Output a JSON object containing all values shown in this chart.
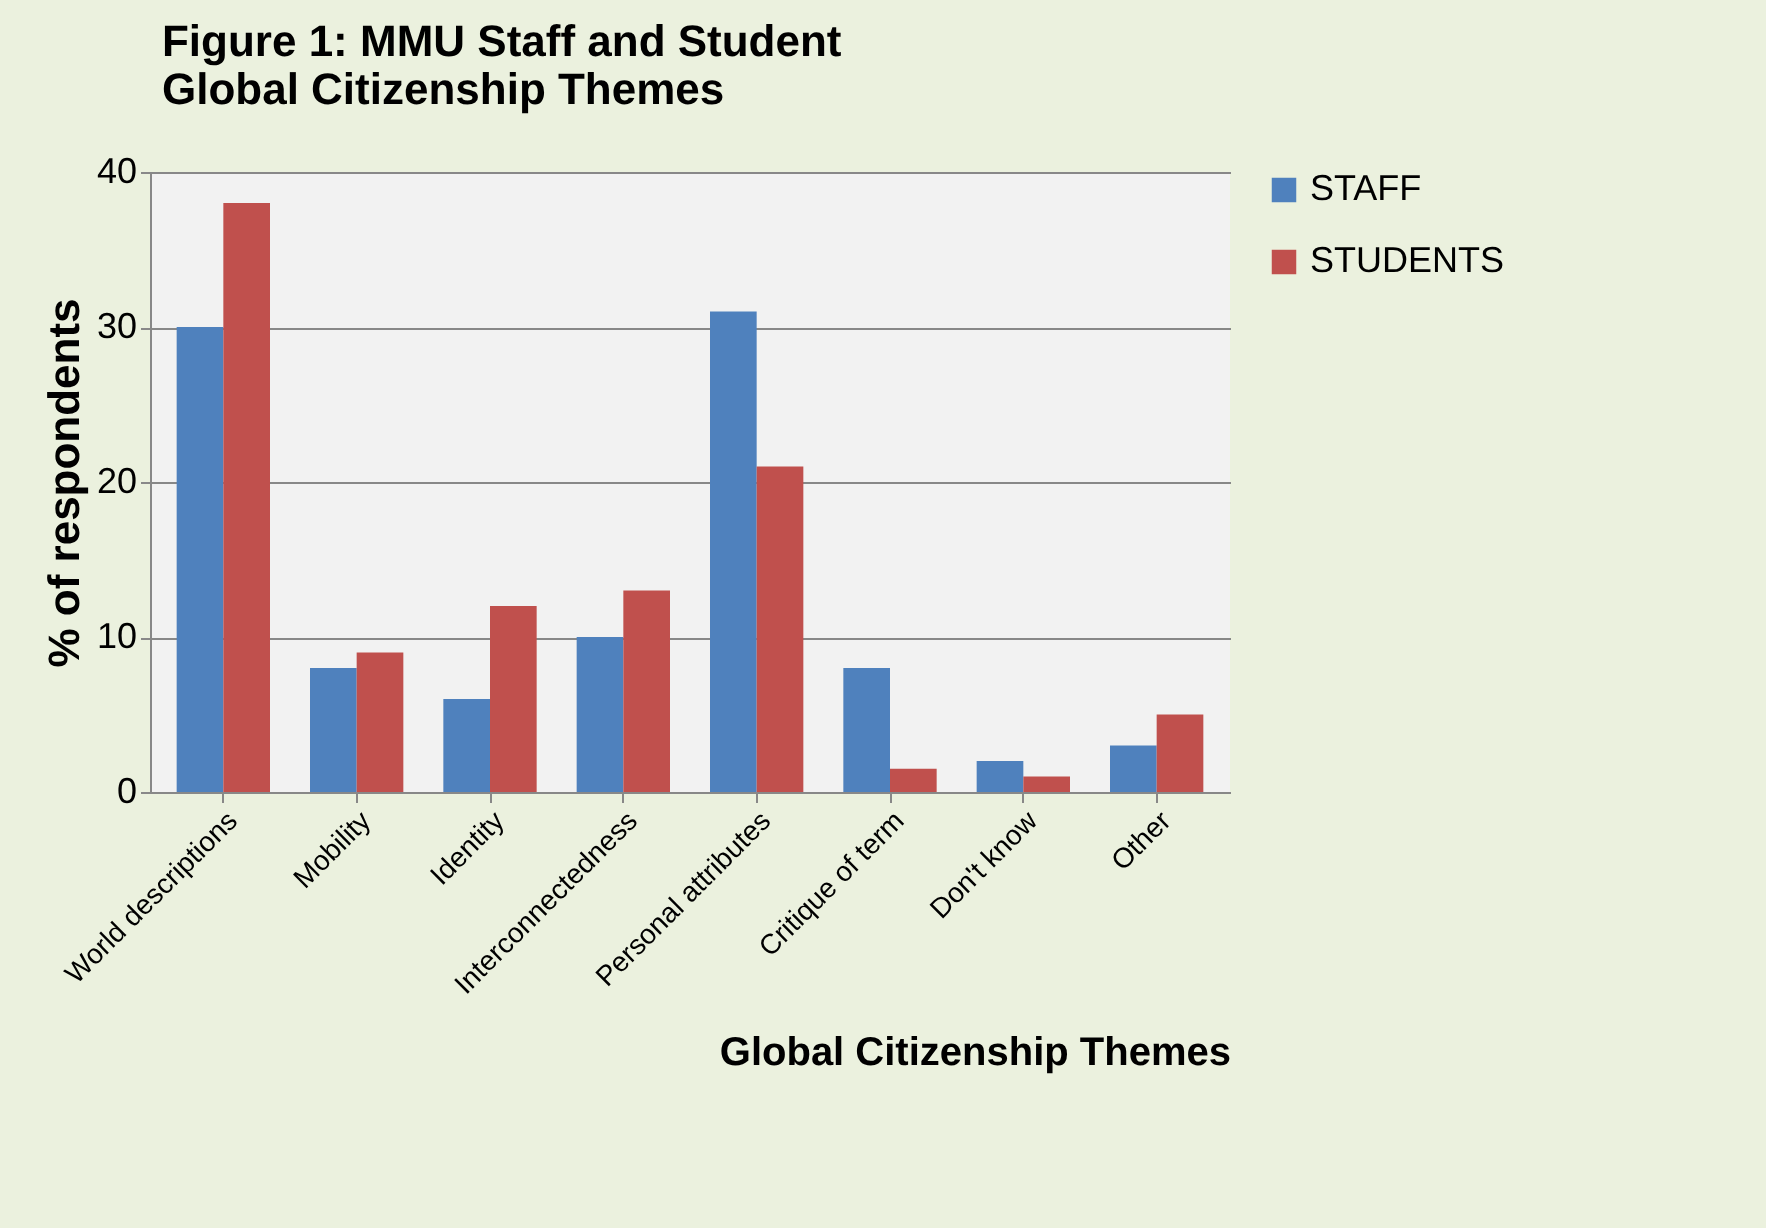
{
  "chart_data": {
    "type": "bar",
    "title": "Figure 1: MMU Staff and Student Global Citizenship Themes",
    "xlabel": "Global Citizenship Themes",
    "ylabel": "% of respondents",
    "categories": [
      "World descriptions",
      "Mobility",
      "Identity",
      "Interconnectedness",
      "Personal attributes",
      "Critique of term",
      "Don't know",
      "Other"
    ],
    "series": [
      {
        "name": "STAFF",
        "color": "#4f81bd",
        "values": [
          30,
          8,
          6,
          10,
          31,
          8,
          2,
          3
        ]
      },
      {
        "name": "STUDENTS",
        "color": "#c0504d",
        "values": [
          38,
          9,
          12,
          13,
          21,
          1.5,
          1,
          5
        ]
      }
    ],
    "ylim": [
      0,
      40
    ],
    "yticks": [
      0,
      10,
      20,
      30,
      40
    ],
    "grid": "y",
    "legend": "right"
  }
}
